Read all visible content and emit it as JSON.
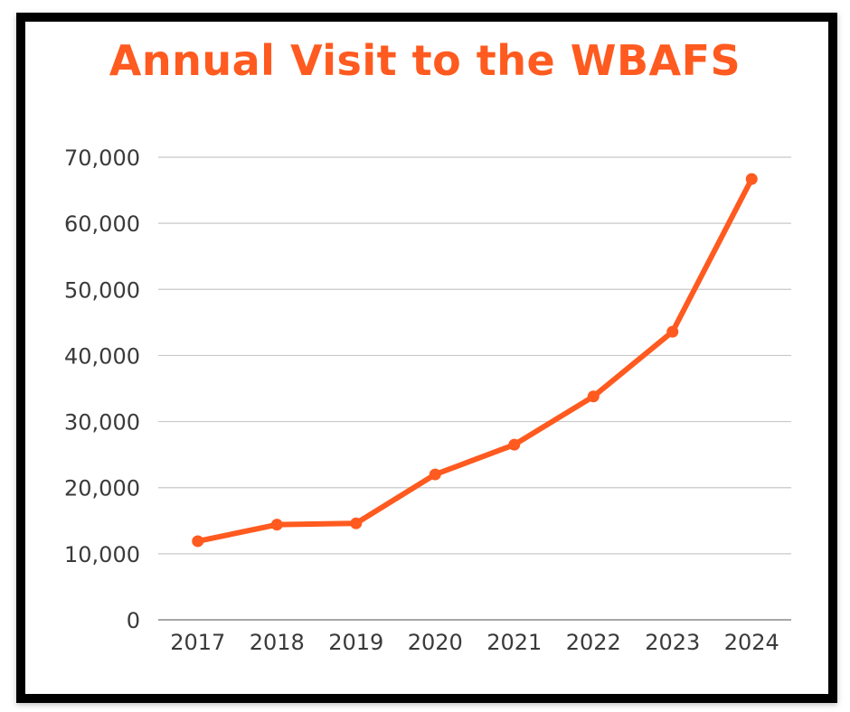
{
  "chart_data": {
    "type": "line",
    "title": "Annual Visit to the WBAFS",
    "xlabel": "",
    "ylabel": "",
    "categories": [
      "2017",
      "2018",
      "2019",
      "2020",
      "2021",
      "2022",
      "2023",
      "2024"
    ],
    "series": [
      {
        "values": [
          11900,
          14400,
          14600,
          22000,
          26500,
          33800,
          43600,
          66700
        ]
      }
    ],
    "ylim": [
      0,
      70000
    ],
    "yticks": [
      0,
      10000,
      20000,
      30000,
      40000,
      50000,
      60000,
      70000
    ],
    "ytick_labels": [
      "0",
      "10,000",
      "20,000",
      "30,000",
      "40,000",
      "50,000",
      "60,000",
      "70,000"
    ],
    "grid": true,
    "legend": "none",
    "colors": {
      "line": "#FF5A1F",
      "title": "#FF5A1F",
      "grid": "#c8c8c8",
      "axis": "#8a8a8a",
      "frame": "#000000"
    }
  }
}
